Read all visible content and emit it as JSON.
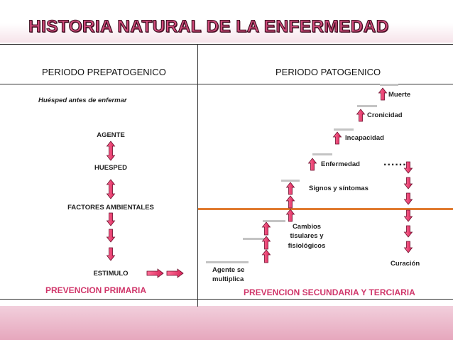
{
  "title": "HISTORIA NATURAL DE LA ENFERMEDAD",
  "headers": {
    "prepatogenico": "PERIODO PREPATOGENICO",
    "patogenico": "PERIODO PATOGENICO"
  },
  "prepatogenic": {
    "host_note": "Huésped antes de enfermar",
    "agente": "AGENTE",
    "huesped": "HUESPED",
    "factores": "FACTORES AMBIENTALES",
    "estimulo": "ESTIMULO"
  },
  "pathogenic": {
    "agent_line1": "Agente se",
    "agent_line2": "multiplica",
    "cambios_line1": "Cambios",
    "cambios_line2": "tisulares y",
    "cambios_line3": "fisiológicos",
    "signos": "Signos y síntomas",
    "enfermedad": "Enfermedad",
    "incapacidad": "Incapacidad",
    "cronicidad": "Cronicidad",
    "muerte": "Muerte",
    "curacion": "Curación",
    "ellipsis": "......"
  },
  "prevention": {
    "primaria": "PREVENCION PRIMARIA",
    "secundaria": "PREVENCION SECUNDARIA Y TERCIARIA"
  },
  "colors": {
    "title_fill": "#d04a7a",
    "arrow_fill": "#e8356e",
    "arrow_stroke": "#6b0f2c",
    "prevention_text": "#d0366a",
    "divider_orange": "#e07b30",
    "step_gray": "#c4c4c4"
  }
}
